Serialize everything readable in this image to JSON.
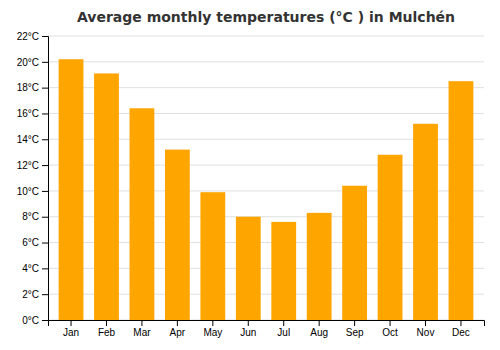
{
  "chart_data": {
    "type": "bar",
    "title": "Average monthly temperatures (°C ) in Mulchén",
    "categories": [
      "Jan",
      "Feb",
      "Mar",
      "Apr",
      "May",
      "Jun",
      "Jul",
      "Aug",
      "Sep",
      "Oct",
      "Nov",
      "Dec"
    ],
    "values": [
      20.2,
      19.1,
      16.4,
      13.2,
      9.9,
      8.0,
      7.6,
      8.3,
      10.4,
      12.8,
      15.2,
      18.5
    ],
    "color": "#FFA500",
    "ylim": [
      0,
      22
    ],
    "yticks": [
      {
        "value": 0,
        "label": "0°C"
      },
      {
        "value": 2,
        "label": "2°C"
      },
      {
        "value": 4,
        "label": "4°C"
      },
      {
        "value": 6,
        "label": "6°C"
      },
      {
        "value": 8,
        "label": "8°C"
      },
      {
        "value": 10,
        "label": "10°C"
      },
      {
        "value": 12,
        "label": "12°C"
      },
      {
        "value": 14,
        "label": "14°C"
      },
      {
        "value": 16,
        "label": "16°C"
      },
      {
        "value": 18,
        "label": "18°C"
      },
      {
        "value": 20,
        "label": "20°C"
      },
      {
        "value": 22,
        "label": "22°C"
      }
    ],
    "grid": true
  }
}
